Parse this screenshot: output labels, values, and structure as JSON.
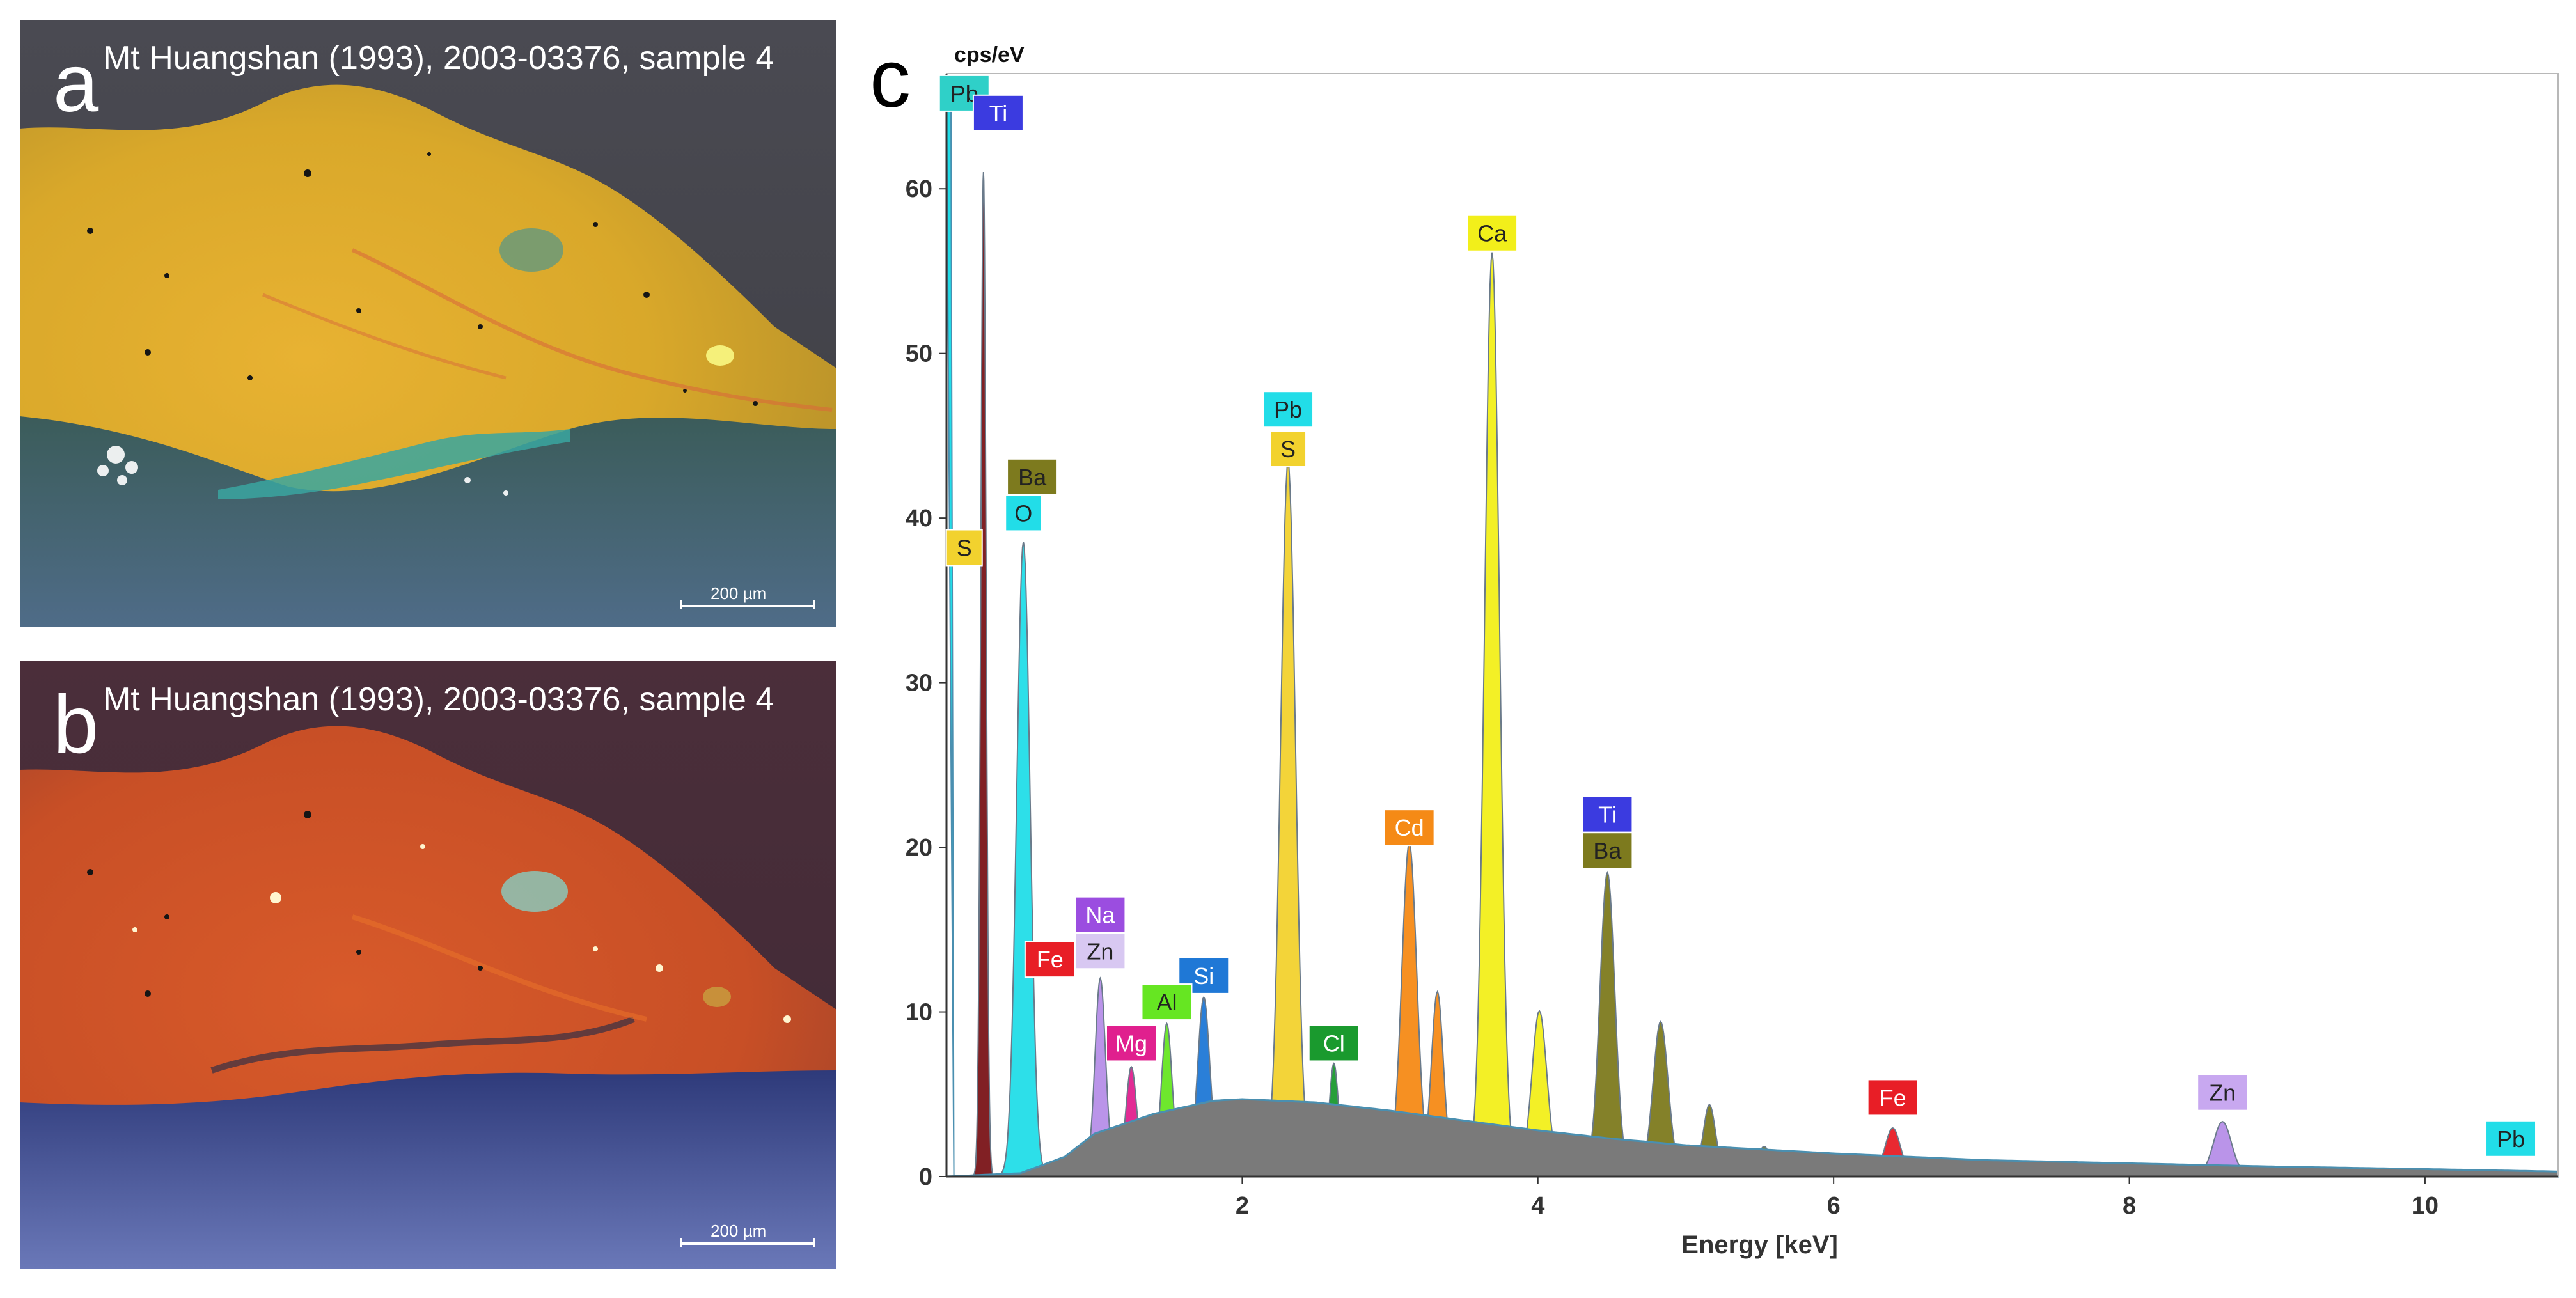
{
  "panels": {
    "a": {
      "letter": "a",
      "caption": "Mt Huangshan (1993), 2003-03376, sample 4",
      "scale_label": "200 µm"
    },
    "b": {
      "letter": "b",
      "caption": "Mt Huangshan (1993), 2003-03376, sample 4",
      "scale_label": "200 µm"
    },
    "c": {
      "letter": "c"
    }
  },
  "colors": {
    "background_line": "#6e7a85",
    "background_fill": "#7a7a7a",
    "spectrum_line": "#4a8fb0"
  },
  "chart_data": {
    "type": "area",
    "ylabel": "cps/eV",
    "xlabel": "Energy [keV]",
    "xlim": [
      0,
      10.9
    ],
    "ylim": [
      0,
      67
    ],
    "xticks": [
      2,
      4,
      6,
      8,
      10
    ],
    "yticks": [
      0,
      10,
      20,
      30,
      40,
      50,
      60
    ],
    "grid": false,
    "peaks": [
      {
        "element": "O",
        "energy": 0.52,
        "height": 38.5,
        "width": 0.045,
        "color": "#22dde8"
      },
      {
        "element": "Ti",
        "energy": 0.25,
        "height": 61,
        "width": 0.018,
        "color": "#7a1418"
      },
      {
        "element": "Na",
        "energy": 1.04,
        "height": 11.5,
        "width": 0.035,
        "color": "#b68ee8"
      },
      {
        "element": "Mg",
        "energy": 1.25,
        "height": 6,
        "width": 0.035,
        "color": "#e0208e"
      },
      {
        "element": "Al",
        "energy": 1.49,
        "height": 8.5,
        "width": 0.035,
        "color": "#66e622"
      },
      {
        "element": "Si",
        "energy": 1.74,
        "height": 10,
        "width": 0.04,
        "color": "#1f78d6"
      },
      {
        "element": "S",
        "energy": 2.31,
        "height": 42.5,
        "width": 0.05,
        "color": "#f2d22e"
      },
      {
        "element": "Cl",
        "energy": 2.62,
        "height": 6,
        "width": 0.03,
        "color": "#1a9a2e"
      },
      {
        "element": "Cd",
        "energy": 3.13,
        "height": 19.5,
        "width": 0.05,
        "color": "#f58a16"
      },
      {
        "element": "Cd Lβ",
        "energy": 3.32,
        "height": 10.5,
        "width": 0.04,
        "color": "#f58a16"
      },
      {
        "element": "Ca",
        "energy": 3.69,
        "height": 55.5,
        "width": 0.05,
        "color": "#f2ef1a"
      },
      {
        "element": "Ca Kβ",
        "energy": 4.01,
        "height": 9.5,
        "width": 0.05,
        "color": "#f2ef1a"
      },
      {
        "element": "Ba",
        "energy": 4.47,
        "height": 18,
        "width": 0.05,
        "color": "#7d7a1e"
      },
      {
        "element": "Ba Lβ",
        "energy": 4.83,
        "height": 9,
        "width": 0.05,
        "color": "#7d7a1e"
      },
      {
        "element": "Ba Lγ",
        "energy": 5.16,
        "height": 4,
        "width": 0.04,
        "color": "#7d7a1e"
      },
      {
        "element": "Ba Lγ2",
        "energy": 5.53,
        "height": 1.5,
        "width": 0.04,
        "color": "#7d7a1e"
      },
      {
        "element": "Fe",
        "energy": 6.4,
        "height": 2.7,
        "width": 0.05,
        "color": "#e81e26"
      },
      {
        "element": "Zn",
        "energy": 8.63,
        "height": 3.2,
        "width": 0.06,
        "color": "#b68ee8"
      }
    ],
    "annotations": [
      {
        "text": "Pb",
        "energy": 0.12,
        "y": 65.8,
        "color": "#2fd0c8"
      },
      {
        "text": "Ti",
        "energy": 0.35,
        "y": 64.6,
        "color": "#3b3be0"
      },
      {
        "text": "Ba",
        "energy": 0.58,
        "y": 42.5,
        "color": "#7d7a1e"
      },
      {
        "text": "O",
        "energy": 0.52,
        "y": 40.3,
        "color": "#22dde8"
      },
      {
        "text": "S",
        "energy": 0.12,
        "y": 38.2,
        "color": "#f2d22e"
      },
      {
        "text": "Na",
        "energy": 1.04,
        "y": 15.9,
        "color": "#9b4de0"
      },
      {
        "text": "Zn",
        "energy": 1.04,
        "y": 13.7,
        "color": "#d8c8f2"
      },
      {
        "text": "Fe",
        "energy": 0.7,
        "y": 13.2,
        "color": "#e81e26"
      },
      {
        "text": "Si",
        "energy": 1.74,
        "y": 12.2,
        "color": "#1f78d6"
      },
      {
        "text": "Al",
        "energy": 1.49,
        "y": 10.6,
        "color": "#66e622"
      },
      {
        "text": "Mg",
        "energy": 1.25,
        "y": 8.1,
        "color": "#e0208e"
      },
      {
        "text": "Pb",
        "energy": 2.31,
        "y": 46.6,
        "color": "#22dde8"
      },
      {
        "text": "S",
        "energy": 2.31,
        "y": 44.2,
        "color": "#f2d22e"
      },
      {
        "text": "Cl",
        "energy": 2.62,
        "y": 8.1,
        "color": "#1a9a2e"
      },
      {
        "text": "Cd",
        "energy": 3.13,
        "y": 21.2,
        "color": "#f58a16"
      },
      {
        "text": "Ca",
        "energy": 3.69,
        "y": 57.3,
        "color": "#f2ef1a"
      },
      {
        "text": "Ti",
        "energy": 4.47,
        "y": 22.0,
        "color": "#3b3be0"
      },
      {
        "text": "Ba",
        "energy": 4.47,
        "y": 19.8,
        "color": "#7d7a1e"
      },
      {
        "text": "Fe",
        "energy": 6.4,
        "y": 4.8,
        "color": "#e81e26"
      },
      {
        "text": "Zn",
        "energy": 8.63,
        "y": 5.1,
        "color": "#c8a8f0"
      },
      {
        "text": "Pb",
        "energy": 10.58,
        "y": 2.3,
        "color": "#22dde8"
      }
    ],
    "background": [
      [
        0,
        0
      ],
      [
        0.5,
        0.2
      ],
      [
        0.8,
        1.2
      ],
      [
        1.0,
        2.6
      ],
      [
        1.4,
        3.8
      ],
      [
        1.8,
        4.6
      ],
      [
        2.0,
        4.7
      ],
      [
        2.5,
        4.5
      ],
      [
        3.0,
        4.0
      ],
      [
        3.5,
        3.4
      ],
      [
        4.0,
        2.8
      ],
      [
        4.5,
        2.3
      ],
      [
        5.0,
        1.9
      ],
      [
        6.0,
        1.4
      ],
      [
        7.0,
        1.0
      ],
      [
        8.0,
        0.8
      ],
      [
        9.0,
        0.6
      ],
      [
        10.0,
        0.45
      ],
      [
        10.9,
        0.3
      ]
    ]
  }
}
